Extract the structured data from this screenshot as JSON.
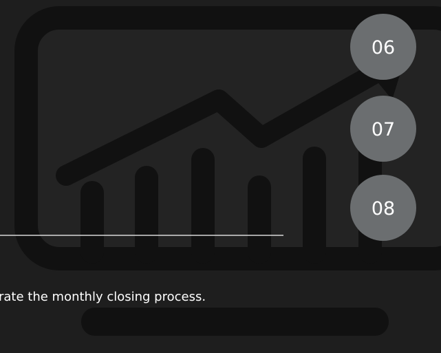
{
  "steps": [
    "06",
    "07",
    "08"
  ],
  "caption": "rate the monthly closing process."
}
